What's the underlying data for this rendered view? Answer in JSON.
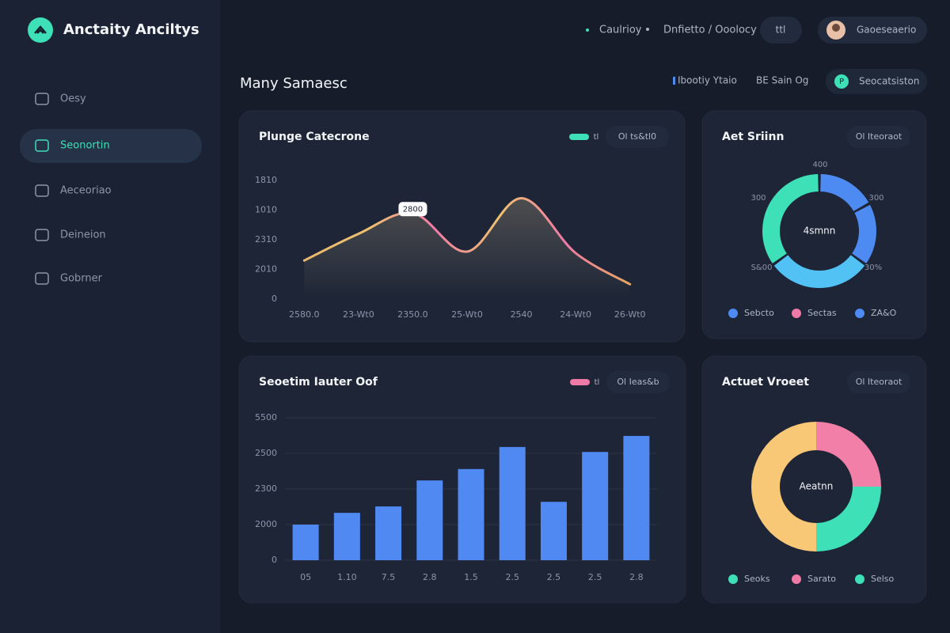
{
  "header": {
    "logo": "Anctaity Anciltys",
    "nav": [
      "Caulrioy",
      "Dnfietto / Ooolocy"
    ],
    "icon_button": "ttl",
    "user": "Gaoeseaerio"
  },
  "sidebar": {
    "items": [
      "Oesy",
      "Seonortin",
      "Aeceoriao",
      "Deineion",
      "Gobrner"
    ],
    "active": 1
  },
  "page": {
    "title": "Many Samaesc",
    "filters": [
      "Ibootiy Ytaio",
      "BE Sain Og"
    ],
    "button_icon": "P",
    "button": "Seocatsiston"
  },
  "panels": [
    {
      "title": "Plunge Catecrone",
      "legend_color": "#3ee0b8",
      "legend_label": "tl",
      "dropdown": "Ol ts&tl0",
      "chart": {
        "type": "line",
        "categories": [
          "2580.0",
          "23-Wt0",
          "2350.0",
          "25-Wt0",
          "2540",
          "24-Wt0",
          "26-Wt0"
        ],
        "values": [
          1.3,
          2.2,
          2.9,
          1.6,
          3.4,
          1.55,
          0.5
        ],
        "colors": [
          "#eab86c",
          "#f0c36e",
          "#ef7aa6",
          "#f0c36e",
          "#ef7aa6",
          "#e8a760"
        ],
        "ylim": [
          0,
          4
        ],
        "yticks": [
          0,
          {
            "value": 1,
            "label": "2010"
          },
          {
            "value": 2,
            "label": "2310"
          },
          {
            "value": 3,
            "label": "1010"
          },
          {
            "value": 4,
            "label": "1810"
          }
        ],
        "grid": false,
        "annotation": {
          "index": 2,
          "label": "2800"
        }
      }
    },
    {
      "title": "Aet Sriinn",
      "dropdown": "Ol Iteoraot",
      "chart": {
        "type": "donut",
        "center_label": "4smnn",
        "values": [
          17,
          18,
          30,
          35
        ],
        "colors": [
          "#4d8bf2",
          "#4d8bf2",
          "#52c2f5",
          "#3ee0b8"
        ],
        "ring_labels": [
          "400",
          "300",
          "300",
          "S&00",
          "30%"
        ],
        "legend": [
          {
            "label": "Sebcto",
            "color": "#4d8bf2"
          },
          {
            "label": "Sectas",
            "color": "#ef7aa6"
          },
          {
            "label": "ZA&O",
            "color": "#4d8bf2"
          }
        ]
      }
    },
    {
      "title": "Seoetim Iauter Oof",
      "legend_color": "#ef7aa6",
      "legend_label": "tl",
      "dropdown": "Ol Ieas&b",
      "chart": {
        "type": "bar",
        "categories": [
          "05",
          "1.10",
          "7.5",
          "2.8",
          "1.5",
          "2.5",
          "2.5",
          "2.5",
          "2.8"
        ],
        "values": [
          1.0,
          1.33,
          1.51,
          2.24,
          2.56,
          3.18,
          1.64,
          3.04,
          3.49
        ],
        "color": "#5189f3",
        "ylim": [
          0,
          4
        ],
        "yticks": [
          0,
          {
            "value": 1,
            "label": "2000"
          },
          {
            "value": 2,
            "label": "2300"
          },
          {
            "value": 3,
            "label": "2500"
          },
          {
            "value": 4,
            "label": "5500"
          }
        ],
        "grid": true
      }
    },
    {
      "title": "Actuet Vroeet",
      "dropdown": "Ol Iteoraot",
      "chart": {
        "type": "donut",
        "center_label": "Aeatnn",
        "values": [
          25,
          25,
          50
        ],
        "colors": [
          "#f27fa8",
          "#3ee0b8",
          "#f8c877"
        ],
        "legend": [
          {
            "label": "Seoks",
            "color": "#3ee0b8"
          },
          {
            "label": "Sarato",
            "color": "#ef7aa6"
          },
          {
            "label": "Selso",
            "color": "#3ee0b8"
          }
        ]
      }
    }
  ]
}
